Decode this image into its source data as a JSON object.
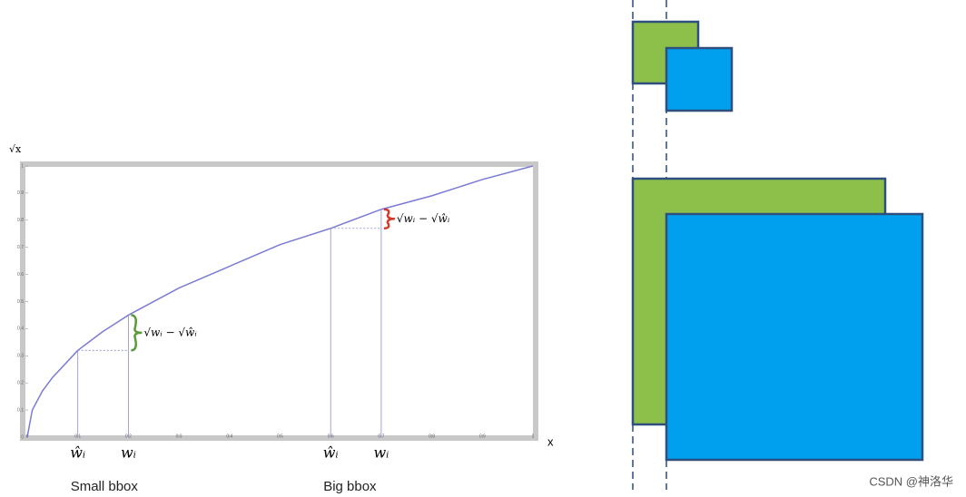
{
  "chart_data": {
    "type": "line",
    "x_label": "x",
    "y_label": "√x",
    "x": [
      0,
      0.01,
      0.03,
      0.05,
      0.1,
      0.15,
      0.2,
      0.3,
      0.4,
      0.5,
      0.6,
      0.7,
      0.8,
      0.9,
      1
    ],
    "values": [
      0,
      0.1,
      0.17,
      0.22,
      0.32,
      0.39,
      0.45,
      0.55,
      0.63,
      0.71,
      0.77,
      0.84,
      0.89,
      0.95,
      1
    ],
    "color": "#7b7bd6",
    "xlim": [
      0,
      1
    ],
    "ylim": [
      0,
      1
    ],
    "xticks": [
      0,
      0.1,
      0.2,
      0.3,
      0.4,
      0.5,
      0.6,
      0.7,
      0.8,
      0.9,
      1
    ],
    "yticks": [
      0,
      0.1,
      0.2,
      0.3,
      0.4,
      0.5,
      0.6,
      0.7,
      0.8,
      0.9,
      1
    ],
    "annotations": [
      {
        "group": "Small bbox",
        "predicted": {
          "x": 0.1,
          "y": 0.32,
          "label": "ŵᵢ"
        },
        "truth": {
          "x": 0.2,
          "y": 0.45,
          "label": "wᵢ"
        },
        "difference_label": "√wᵢ − √ŵᵢ",
        "brace_color": "#5a9a3a"
      },
      {
        "group": "Big bbox",
        "predicted": {
          "x": 0.6,
          "y": 0.77,
          "label": "ŵᵢ"
        },
        "truth": {
          "x": 0.7,
          "y": 0.84,
          "label": "wᵢ"
        },
        "difference_label": "√wᵢ − √ŵᵢ",
        "brace_color": "#d8382a"
      }
    ]
  },
  "watermark": "CSDN @神洛华"
}
